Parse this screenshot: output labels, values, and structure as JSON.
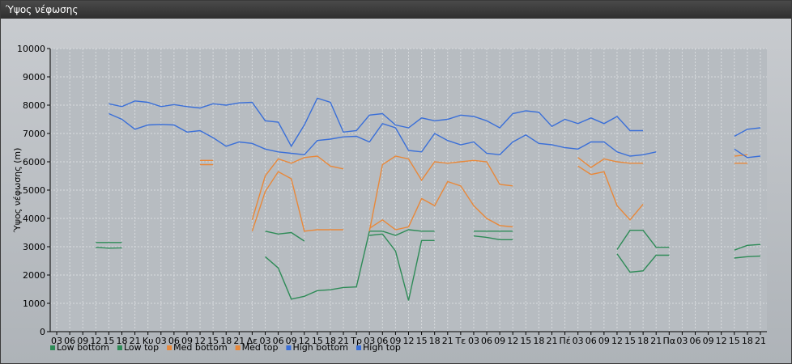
{
  "window": {
    "title": "Ύψος νέφωσης"
  },
  "chart_data": {
    "type": "line",
    "title": "Ύψος νέφωσης",
    "ylabel": "Ύψος νέφωσης (m)",
    "xlabel": "",
    "ylim": [
      0,
      10000
    ],
    "yticks": [
      0,
      1000,
      2000,
      3000,
      4000,
      5000,
      6000,
      7000,
      8000,
      9000,
      10000
    ],
    "x_tick_labels": [
      "03",
      "06",
      "09",
      "12",
      "15",
      "18",
      "21",
      "Κυ",
      "03",
      "06",
      "09",
      "12",
      "15",
      "18",
      "21",
      "Δε",
      "03",
      "06",
      "09",
      "12",
      "15",
      "18",
      "21",
      "Τρ",
      "03",
      "06",
      "09",
      "12",
      "15",
      "18",
      "21",
      "Τε",
      "03",
      "06",
      "09",
      "12",
      "15",
      "18",
      "21",
      "Πέ",
      "03",
      "06",
      "09",
      "12",
      "15",
      "18",
      "21",
      "Πα",
      "03",
      "06",
      "09",
      "12",
      "15",
      "18",
      "21"
    ],
    "grid": true,
    "legend_position": "bottom-left",
    "series": [
      {
        "name": "Low bottom",
        "color": "#2e8b57",
        "segments": [
          [
            [
              3,
              2980
            ],
            [
              4,
              2950
            ],
            [
              5,
              2960
            ]
          ],
          [
            [
              16,
              3550
            ],
            [
              17,
              3450
            ],
            [
              18,
              3500
            ],
            [
              19,
              3200
            ]
          ],
          [
            [
              24,
              3400
            ],
            [
              25,
              3450
            ],
            [
              26,
              2850
            ],
            [
              27,
              1100
            ],
            [
              28,
              3220
            ],
            [
              29,
              3220
            ]
          ],
          [
            [
              32,
              3380
            ],
            [
              33,
              3330
            ],
            [
              34,
              3250
            ],
            [
              35,
              3250
            ]
          ],
          [
            [
              43,
              2750
            ],
            [
              44,
              2100
            ],
            [
              45,
              2150
            ],
            [
              46,
              2700
            ],
            [
              47,
              2700
            ]
          ],
          [
            [
              52,
              2600
            ],
            [
              53,
              2650
            ],
            [
              54,
              2670
            ]
          ]
        ]
      },
      {
        "name": "Low top",
        "color": "#2e8b57",
        "segments": [
          [
            [
              3,
              3150
            ],
            [
              4,
              3150
            ],
            [
              5,
              3150
            ]
          ],
          [
            [
              16,
              2650
            ],
            [
              17,
              2250
            ],
            [
              18,
              1150
            ],
            [
              19,
              1250
            ],
            [
              20,
              1450
            ],
            [
              21,
              1480
            ],
            [
              22,
              1560
            ],
            [
              23,
              1580
            ],
            [
              24,
              3550
            ],
            [
              25,
              3550
            ],
            [
              26,
              3400
            ],
            [
              27,
              3600
            ],
            [
              28,
              3550
            ],
            [
              29,
              3550
            ]
          ],
          [
            [
              32,
              3550
            ],
            [
              33,
              3550
            ],
            [
              34,
              3550
            ],
            [
              35,
              3550
            ]
          ],
          [
            [
              43,
              2900
            ],
            [
              44,
              3580
            ],
            [
              45,
              3580
            ],
            [
              46,
              2980
            ],
            [
              47,
              2980
            ]
          ],
          [
            [
              52,
              2880
            ],
            [
              53,
              3050
            ],
            [
              54,
              3080
            ]
          ]
        ]
      },
      {
        "name": "Med bottom",
        "color": "#e8883a",
        "segments": [
          [
            [
              11,
              6050
            ],
            [
              12,
              6050
            ]
          ],
          [
            [
              11,
              5900
            ],
            [
              12,
              5900
            ]
          ],
          [
            [
              15,
              3550
            ],
            [
              16,
              4950
            ],
            [
              17,
              5650
            ],
            [
              18,
              5400
            ],
            [
              19,
              3550
            ],
            [
              20,
              3600
            ],
            [
              21,
              3600
            ],
            [
              22,
              3600
            ]
          ],
          [
            [
              24,
              3650
            ],
            [
              25,
              3950
            ],
            [
              26,
              3600
            ],
            [
              27,
              3700
            ],
            [
              28,
              4700
            ],
            [
              29,
              4450
            ],
            [
              30,
              5300
            ],
            [
              31,
              5150
            ],
            [
              32,
              4450
            ],
            [
              33,
              4000
            ],
            [
              34,
              3750
            ],
            [
              35,
              3700
            ]
          ],
          [
            [
              40,
              5850
            ],
            [
              41,
              5550
            ],
            [
              42,
              5650
            ],
            [
              43,
              4450
            ],
            [
              44,
              3950
            ],
            [
              45,
              4500
            ]
          ],
          [
            [
              52,
              5950
            ],
            [
              53,
              5950
            ]
          ]
        ]
      },
      {
        "name": "Med top",
        "color": "#e8883a",
        "segments": [
          [
            [
              15,
              3950
            ],
            [
              16,
              5500
            ],
            [
              17,
              6100
            ],
            [
              18,
              5950
            ],
            [
              19,
              6150
            ],
            [
              20,
              6200
            ],
            [
              21,
              5850
            ],
            [
              22,
              5750
            ]
          ],
          [
            [
              24,
              3550
            ],
            [
              25,
              5900
            ],
            [
              26,
              6200
            ],
            [
              27,
              6100
            ],
            [
              28,
              5350
            ],
            [
              29,
              6000
            ],
            [
              30,
              5950
            ],
            [
              31,
              6000
            ],
            [
              32,
              6050
            ],
            [
              33,
              6000
            ],
            [
              34,
              5200
            ],
            [
              35,
              5150
            ]
          ],
          [
            [
              40,
              6150
            ],
            [
              41,
              5800
            ],
            [
              42,
              6100
            ],
            [
              43,
              6000
            ],
            [
              44,
              5950
            ],
            [
              45,
              5950
            ]
          ],
          [
            [
              52,
              6200
            ],
            [
              53,
              6250
            ]
          ]
        ]
      },
      {
        "name": "High bottom",
        "color": "#3a6fd8",
        "segments": [
          [
            [
              4,
              7700
            ],
            [
              5,
              7500
            ],
            [
              6,
              7150
            ],
            [
              7,
              7300
            ],
            [
              8,
              7320
            ],
            [
              9,
              7300
            ],
            [
              10,
              7050
            ],
            [
              11,
              7100
            ],
            [
              12,
              6850
            ],
            [
              13,
              6550
            ],
            [
              14,
              6700
            ],
            [
              15,
              6650
            ],
            [
              16,
              6450
            ],
            [
              17,
              6350
            ],
            [
              18,
              6300
            ],
            [
              19,
              6250
            ],
            [
              20,
              6750
            ],
            [
              21,
              6800
            ],
            [
              22,
              6880
            ],
            [
              23,
              6900
            ],
            [
              24,
              6700
            ],
            [
              25,
              7350
            ],
            [
              26,
              7200
            ],
            [
              27,
              6400
            ],
            [
              28,
              6350
            ],
            [
              29,
              7000
            ],
            [
              30,
              6750
            ],
            [
              31,
              6600
            ],
            [
              32,
              6700
            ],
            [
              33,
              6300
            ],
            [
              34,
              6250
            ],
            [
              35,
              6700
            ],
            [
              36,
              6950
            ],
            [
              37,
              6650
            ],
            [
              38,
              6600
            ],
            [
              39,
              6500
            ],
            [
              40,
              6450
            ],
            [
              41,
              6700
            ],
            [
              42,
              6700
            ],
            [
              43,
              6350
            ],
            [
              44,
              6200
            ],
            [
              45,
              6250
            ],
            [
              46,
              6350
            ]
          ],
          [
            [
              52,
              6450
            ],
            [
              53,
              6150
            ],
            [
              54,
              6200
            ]
          ]
        ]
      },
      {
        "name": "High top",
        "color": "#3a6fd8",
        "segments": [
          [
            [
              4,
              8050
            ],
            [
              5,
              7950
            ],
            [
              6,
              8150
            ],
            [
              7,
              8100
            ],
            [
              8,
              7950
            ],
            [
              9,
              8020
            ],
            [
              10,
              7950
            ],
            [
              11,
              7900
            ],
            [
              12,
              8050
            ],
            [
              13,
              8000
            ],
            [
              14,
              8080
            ],
            [
              15,
              8100
            ],
            [
              16,
              7450
            ],
            [
              17,
              7400
            ],
            [
              18,
              6550
            ],
            [
              19,
              7300
            ],
            [
              20,
              8250
            ],
            [
              21,
              8100
            ],
            [
              22,
              7050
            ],
            [
              23,
              7100
            ],
            [
              24,
              7650
            ],
            [
              25,
              7700
            ],
            [
              26,
              7300
            ],
            [
              27,
              7200
            ],
            [
              28,
              7550
            ],
            [
              29,
              7450
            ],
            [
              30,
              7500
            ],
            [
              31,
              7650
            ],
            [
              32,
              7600
            ],
            [
              33,
              7450
            ],
            [
              34,
              7200
            ],
            [
              35,
              7700
            ],
            [
              36,
              7800
            ],
            [
              37,
              7750
            ],
            [
              38,
              7250
            ],
            [
              39,
              7500
            ],
            [
              40,
              7350
            ],
            [
              41,
              7550
            ],
            [
              42,
              7350
            ],
            [
              43,
              7600
            ],
            [
              44,
              7100
            ],
            [
              45,
              7100
            ]
          ],
          [
            [
              52,
              6900
            ],
            [
              53,
              7150
            ],
            [
              54,
              7200
            ]
          ]
        ]
      }
    ]
  }
}
